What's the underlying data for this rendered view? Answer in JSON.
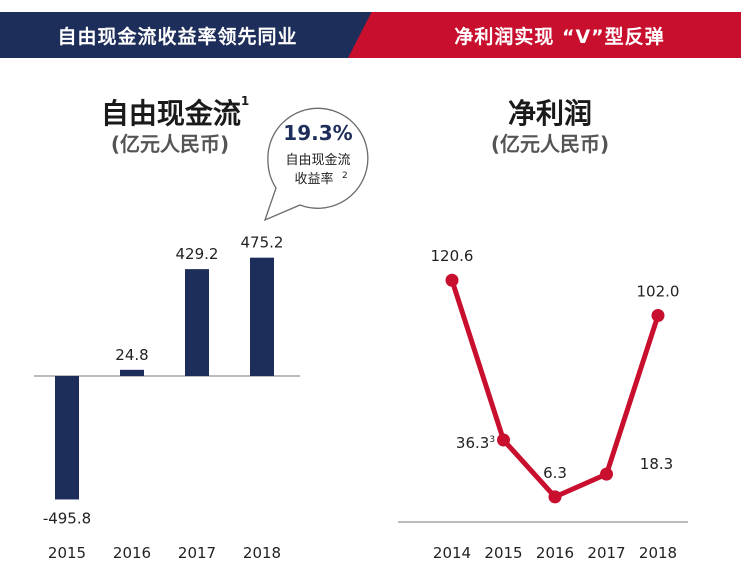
{
  "banners": {
    "left": "自由现金流收益率领先同业",
    "right": "净利润实现 “V”型反弹"
  },
  "colors": {
    "navy": "#1e2e5a",
    "red": "#c8102e"
  },
  "chart_data": [
    {
      "type": "bar",
      "title": "自由现金流",
      "title_footnote": "1",
      "subtitle": "(亿元人民币)",
      "categories": [
        "2015",
        "2016",
        "2017",
        "2018"
      ],
      "values": [
        -495.8,
        24.8,
        429.2,
        475.2
      ],
      "value_labels": [
        "-495.8",
        "24.8",
        "429.2",
        "475.2"
      ],
      "ylim": [
        -520,
        520
      ],
      "grid": false,
      "callout": {
        "value": "19.3%",
        "line1": "自由现金流",
        "line2": "收益率",
        "footnote": "2"
      }
    },
    {
      "type": "line",
      "title": "净利润",
      "subtitle": "(亿元人民币)",
      "categories": [
        "2014",
        "2015",
        "2016",
        "2017",
        "2018"
      ],
      "values": [
        120.6,
        36.3,
        6.3,
        18.3,
        102.0
      ],
      "value_labels": [
        "120.6",
        "36.3",
        "6.3",
        "18.3",
        "102.0"
      ],
      "value_footnotes": [
        "",
        "3",
        "",
        "",
        ""
      ],
      "ylim": [
        -8,
        126
      ],
      "grid": false
    }
  ]
}
